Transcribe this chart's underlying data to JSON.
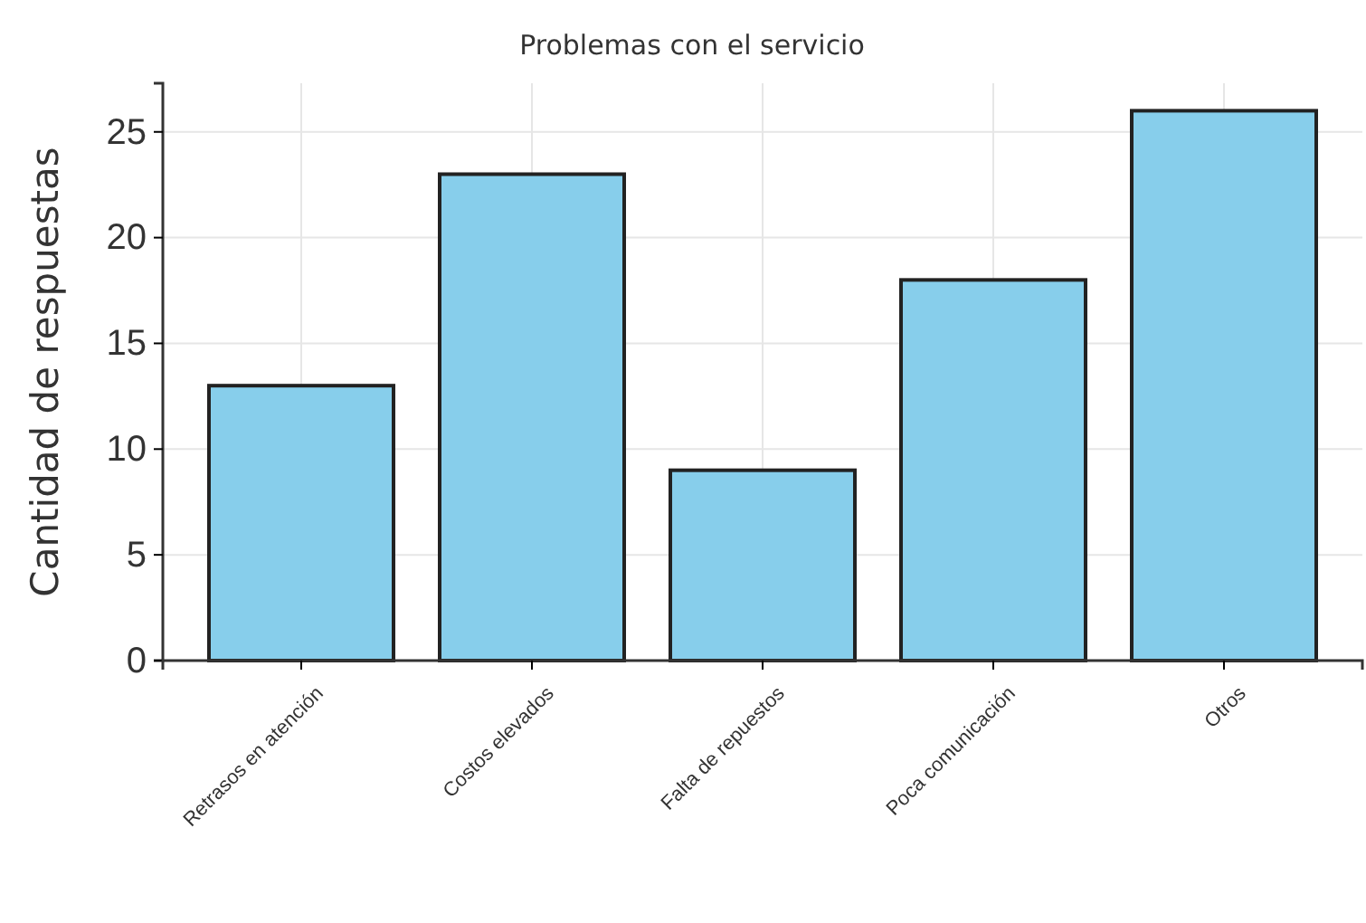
{
  "chart_data": {
    "type": "bar",
    "title": "Problemas con el servicio",
    "ylabel": "Cantidad de respuestas",
    "categories": [
      "Retrasos en atención",
      "Costos elevados",
      "Falta de repuestos",
      "Poca comunicación",
      "Otros"
    ],
    "values": [
      13,
      23,
      9,
      18,
      26
    ],
    "color": "#87ceeb",
    "ylim": [
      0,
      27.3
    ],
    "yticks": [
      0,
      5,
      10,
      15,
      20,
      25
    ],
    "grid": true
  }
}
